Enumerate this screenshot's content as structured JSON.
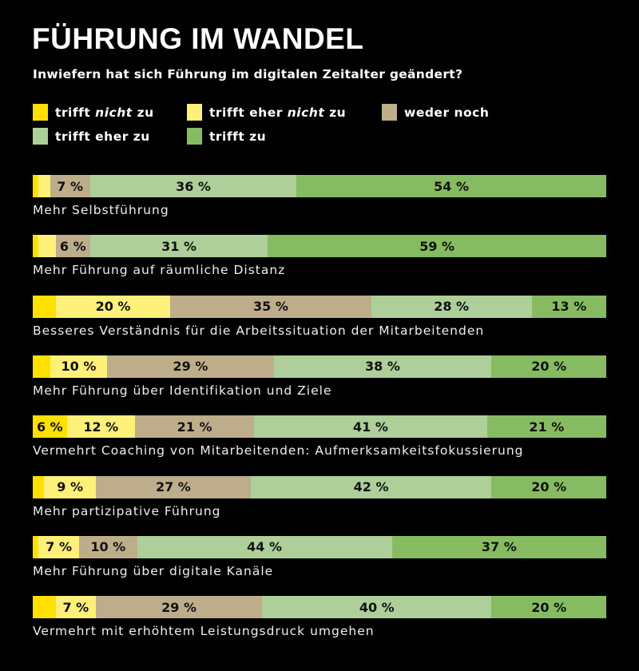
{
  "chart_data": {
    "type": "bar",
    "orientation": "horizontal",
    "stacked": true,
    "title": "FÜHRUNG IM WANDEL",
    "subtitle": "Inwiefern hat sich Führung im digitalen Zeitalter geändert?",
    "legend_placement": "top",
    "unit": "%",
    "categories": [
      "Mehr Selbstführung",
      "Mehr Führung auf räumliche Distanz",
      "Besseres Verständnis für die Arbeitssituation der Mitarbeitenden",
      "Mehr Führung über Identifikation und Ziele",
      "Vermehrt Coaching von Mitarbeitenden: Aufmerksamkeitsfokussierung",
      "Mehr partizipative Führung",
      "Mehr Führung über digitale Kanäle",
      "Vermehrt mit erhöhtem Leistungsdruck umgehen"
    ],
    "series": [
      {
        "name": "trifft nicht zu",
        "color": "#FFE000",
        "values": [
          1,
          1,
          4,
          3,
          6,
          2,
          1,
          4
        ],
        "labeled": [
          false,
          false,
          false,
          false,
          true,
          false,
          false,
          false
        ]
      },
      {
        "name": "trifft eher nicht zu",
        "color": "#FFF07A",
        "values": [
          2,
          3,
          20,
          10,
          12,
          9,
          7,
          7
        ],
        "labeled": [
          false,
          false,
          true,
          true,
          true,
          true,
          true,
          true
        ]
      },
      {
        "name": "weder noch",
        "color": "#BDAD8B",
        "values": [
          7,
          6,
          35,
          29,
          21,
          27,
          10,
          29
        ],
        "labeled": [
          true,
          true,
          true,
          true,
          true,
          true,
          true,
          true
        ]
      },
      {
        "name": "trifft eher zu",
        "color": "#AECF99",
        "values": [
          36,
          31,
          28,
          38,
          41,
          42,
          44,
          40
        ],
        "labeled": [
          true,
          true,
          true,
          true,
          true,
          true,
          true,
          true
        ]
      },
      {
        "name": "trifft zu",
        "color": "#86BB62",
        "values": [
          54,
          59,
          13,
          20,
          21,
          20,
          37,
          20
        ],
        "labeled": [
          true,
          true,
          true,
          true,
          true,
          true,
          true,
          true
        ]
      }
    ]
  }
}
